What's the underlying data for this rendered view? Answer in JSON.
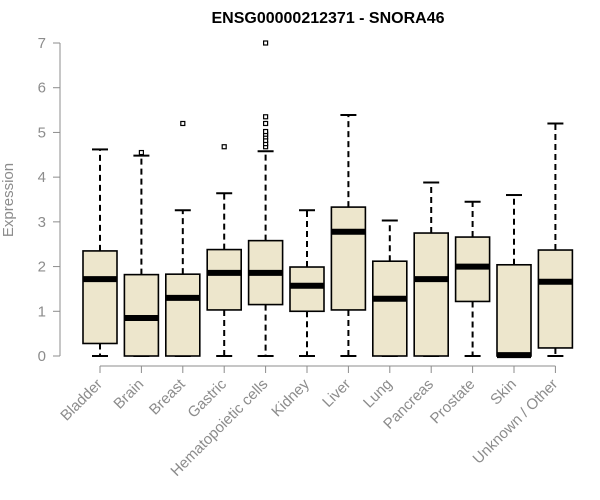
{
  "chart_data": {
    "type": "boxplot",
    "title": "ENSG00000212371 - SNORA46",
    "xlabel": "",
    "ylabel": "Expression",
    "ylim": [
      0,
      7
    ],
    "yticks": [
      0,
      1,
      2,
      3,
      4,
      5,
      6,
      7
    ],
    "categories": [
      "Bladder",
      "Brain",
      "Breast",
      "Gastric",
      "Hematopoietic cells",
      "Kidney",
      "Liver",
      "Lung",
      "Pancreas",
      "Prostate",
      "Skin",
      "Unknown / Other"
    ],
    "boxes": [
      {
        "category": "Bladder",
        "whisker_low": 0,
        "q1": 0.28,
        "median": 1.72,
        "q3": 2.35,
        "whisker_high": 4.62,
        "outliers": []
      },
      {
        "category": "Brain",
        "whisker_low": 0,
        "q1": 0,
        "median": 0.85,
        "q3": 1.82,
        "whisker_high": 4.48,
        "outliers": [
          4.55
        ]
      },
      {
        "category": "Breast",
        "whisker_low": 0,
        "q1": 0,
        "median": 1.3,
        "q3": 1.83,
        "whisker_high": 3.26,
        "outliers": [
          5.2
        ]
      },
      {
        "category": "Gastric",
        "whisker_low": 0,
        "q1": 1.03,
        "median": 1.86,
        "q3": 2.38,
        "whisker_high": 3.64,
        "outliers": [
          4.68
        ]
      },
      {
        "category": "Hematopoietic cells",
        "whisker_low": 0,
        "q1": 1.15,
        "median": 1.86,
        "q3": 2.58,
        "whisker_high": 4.58,
        "outliers": [
          4.68,
          4.75,
          4.82,
          4.9,
          4.96,
          5.02,
          5.2,
          5.35,
          7.0
        ]
      },
      {
        "category": "Kidney",
        "whisker_low": 0,
        "q1": 1.0,
        "median": 1.57,
        "q3": 1.99,
        "whisker_high": 3.26,
        "outliers": []
      },
      {
        "category": "Liver",
        "whisker_low": 0,
        "q1": 1.03,
        "median": 2.78,
        "q3": 3.33,
        "whisker_high": 5.39,
        "outliers": []
      },
      {
        "category": "Lung",
        "whisker_low": 0,
        "q1": 0,
        "median": 1.28,
        "q3": 2.12,
        "whisker_high": 3.03,
        "outliers": []
      },
      {
        "category": "Pancreas",
        "whisker_low": 0,
        "q1": 0,
        "median": 1.72,
        "q3": 2.75,
        "whisker_high": 3.88,
        "outliers": []
      },
      {
        "category": "Prostate",
        "whisker_low": 0,
        "q1": 1.22,
        "median": 2.0,
        "q3": 2.66,
        "whisker_high": 3.45,
        "outliers": []
      },
      {
        "category": "Skin",
        "whisker_low": 0,
        "q1": 0,
        "median": 0.02,
        "q3": 2.04,
        "whisker_high": 3.6,
        "outliers": []
      },
      {
        "category": "Unknown / Other",
        "whisker_low": 0,
        "q1": 0.18,
        "median": 1.66,
        "q3": 2.37,
        "whisker_high": 5.2,
        "outliers": []
      }
    ],
    "colors": {
      "box_fill": "#ede6cc",
      "box_stroke": "#000000",
      "axis": "#8c8c8c"
    },
    "grid": false
  }
}
